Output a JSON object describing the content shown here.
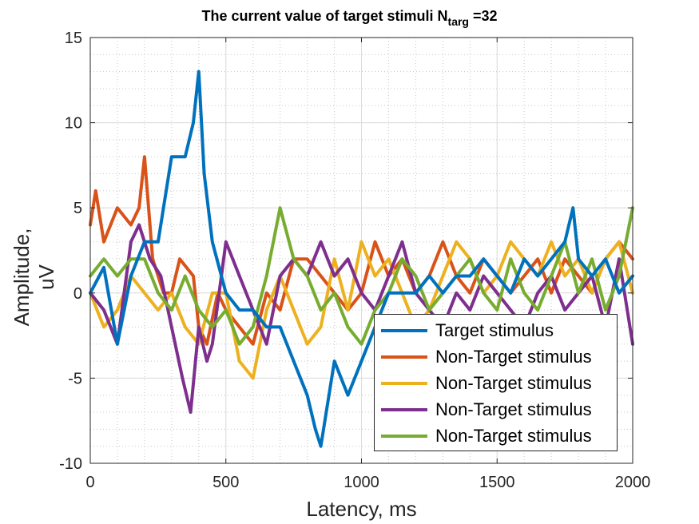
{
  "chart_data": {
    "type": "line",
    "title_main": "The current value of target stimuli N",
    "title_sub": "targ",
    "title_tail": " =32",
    "xlabel": "Latency, ms",
    "ylabel": "Amplitude, uV",
    "xlim": [
      0,
      2000
    ],
    "ylim": [
      -10,
      15
    ],
    "xticks": [
      0,
      500,
      1000,
      1500,
      2000
    ],
    "yticks": [
      -10,
      -5,
      0,
      5,
      10,
      15
    ],
    "xtick_labels": [
      "0",
      "500",
      "1000",
      "1500",
      "2000"
    ],
    "ytick_labels": [
      "-10",
      "-5",
      "0",
      "5",
      "10",
      "15"
    ],
    "grid": true,
    "legend_position": "bottom-right",
    "series": [
      {
        "name": "Target stimulus",
        "color": "#0072BD",
        "x": [
          0,
          50,
          100,
          150,
          200,
          250,
          300,
          350,
          380,
          400,
          420,
          450,
          500,
          550,
          600,
          650,
          700,
          750,
          800,
          830,
          850,
          880,
          900,
          950,
          1000,
          1050,
          1100,
          1150,
          1200,
          1250,
          1300,
          1350,
          1400,
          1450,
          1500,
          1550,
          1600,
          1650,
          1700,
          1750,
          1780,
          1800,
          1850,
          1900,
          1950,
          2000
        ],
        "y": [
          0,
          1.5,
          -3,
          1,
          3,
          3,
          8,
          8,
          10,
          13,
          7,
          3,
          0,
          -1,
          -1,
          -2,
          -2,
          -4,
          -6,
          -8,
          -9,
          -6,
          -4,
          -6,
          -4,
          -2,
          0,
          0,
          0,
          1,
          0,
          1,
          1,
          2,
          1,
          0,
          2,
          1,
          2,
          3,
          5,
          2,
          1,
          2,
          0,
          1
        ]
      },
      {
        "name": "Non-Target stimulus",
        "color": "#D95319",
        "x": [
          0,
          20,
          50,
          100,
          150,
          180,
          200,
          230,
          270,
          300,
          330,
          380,
          400,
          430,
          470,
          500,
          550,
          600,
          650,
          700,
          750,
          800,
          850,
          900,
          950,
          1000,
          1050,
          1100,
          1150,
          1200,
          1250,
          1300,
          1350,
          1400,
          1450,
          1500,
          1550,
          1600,
          1650,
          1700,
          1750,
          1800,
          1850,
          1900,
          1950,
          2000
        ],
        "y": [
          4,
          6,
          3,
          5,
          4,
          5,
          8,
          2,
          0,
          0,
          2,
          1,
          -2,
          -3,
          0,
          -1,
          -2,
          -3,
          0,
          -1,
          2,
          2,
          1,
          0,
          -1,
          0,
          3,
          1,
          2,
          0,
          1,
          3,
          1,
          0,
          2,
          1,
          0,
          1,
          2,
          0,
          2,
          1,
          0,
          2,
          3,
          2
        ]
      },
      {
        "name": "Non-Target stimulus",
        "color": "#EDB120",
        "x": [
          0,
          50,
          100,
          150,
          200,
          250,
          300,
          350,
          400,
          450,
          500,
          550,
          600,
          650,
          700,
          750,
          800,
          850,
          900,
          950,
          1000,
          1050,
          1100,
          1150,
          1200,
          1250,
          1300,
          1350,
          1400,
          1450,
          1500,
          1550,
          1600,
          1650,
          1700,
          1750,
          1800,
          1850,
          1900,
          1950,
          2000
        ],
        "y": [
          0,
          -2,
          -1,
          1,
          0,
          -1,
          0,
          -2,
          -3,
          0,
          0,
          -4,
          -5,
          -1,
          1,
          -1,
          -3,
          -2,
          2,
          -1,
          3,
          1,
          2,
          0,
          -2,
          -1,
          1,
          3,
          2,
          0,
          1,
          3,
          2,
          1,
          3,
          1,
          2,
          0,
          2,
          3,
          0
        ]
      },
      {
        "name": "Non-Target stimulus",
        "color": "#7E2F8E",
        "x": [
          0,
          50,
          100,
          150,
          180,
          220,
          260,
          300,
          340,
          370,
          400,
          430,
          450,
          500,
          550,
          600,
          650,
          700,
          750,
          800,
          850,
          900,
          950,
          1000,
          1050,
          1100,
          1150,
          1200,
          1250,
          1300,
          1350,
          1400,
          1450,
          1500,
          1550,
          1600,
          1650,
          1700,
          1750,
          1800,
          1850,
          1900,
          1950,
          2000
        ],
        "y": [
          0,
          -1,
          -3,
          3,
          4,
          2,
          1,
          -2,
          -5,
          -7,
          -2,
          -4,
          -3,
          3,
          1,
          -1,
          -3,
          1,
          2,
          1,
          3,
          1,
          2,
          0,
          -1,
          1,
          3,
          0,
          -1,
          -2,
          0,
          -1,
          1,
          0,
          -1,
          -2,
          0,
          1,
          -1,
          0,
          1,
          -2,
          2,
          -3
        ]
      },
      {
        "name": "Non-Target stimulus",
        "color": "#77AC30",
        "x": [
          0,
          50,
          100,
          150,
          200,
          250,
          300,
          350,
          400,
          450,
          500,
          550,
          600,
          650,
          700,
          750,
          800,
          850,
          900,
          950,
          1000,
          1050,
          1100,
          1150,
          1200,
          1250,
          1300,
          1350,
          1400,
          1450,
          1500,
          1550,
          1600,
          1650,
          1700,
          1750,
          1800,
          1850,
          1900,
          1950,
          2000
        ],
        "y": [
          1,
          2,
          1,
          2,
          2,
          0,
          -1,
          1,
          -1,
          -2,
          -1,
          -3,
          -2,
          1,
          5,
          2,
          1,
          -1,
          0,
          -2,
          -3,
          -1,
          0,
          2,
          1,
          -1,
          0,
          1,
          2,
          0,
          -1,
          2,
          0,
          -1,
          1,
          3,
          0,
          2,
          -1,
          1,
          5
        ]
      }
    ]
  }
}
